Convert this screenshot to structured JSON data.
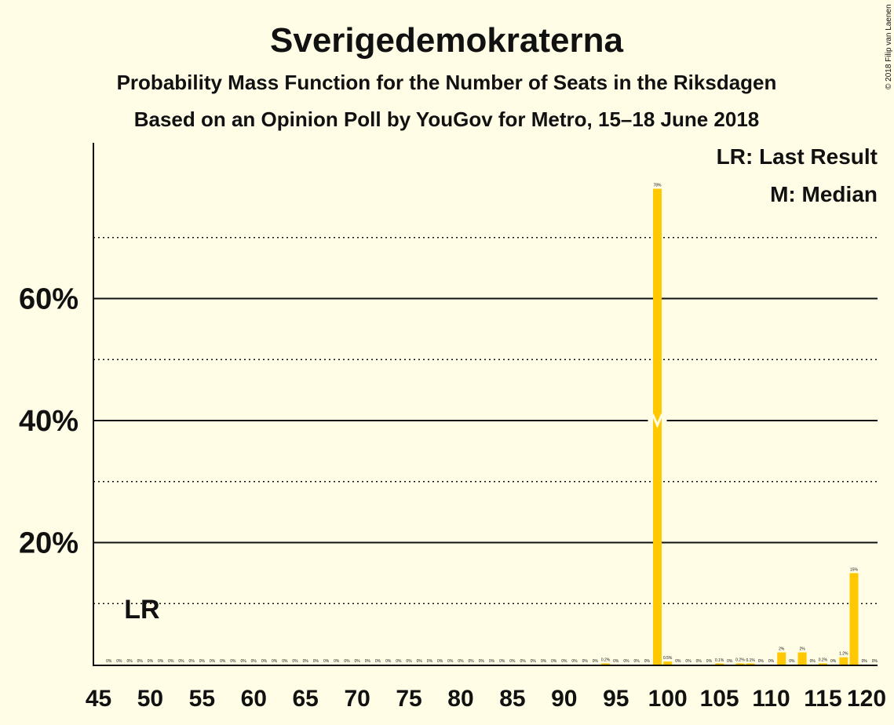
{
  "chart_data": {
    "type": "bar",
    "title": "Sverigedemokraterna",
    "subtitle_1": "Probability Mass Function for the Number of Seats in the Riksdagen",
    "subtitle_2": "Based on an Opinion Poll by YouGov for Metro, 15–18 June 2018",
    "copyright": "© 2018 Filip van Laenen",
    "x_range": [
      45,
      120
    ],
    "x_ticks": [
      "45",
      "50",
      "55",
      "60",
      "65",
      "70",
      "75",
      "80",
      "85",
      "90",
      "95",
      "100",
      "105",
      "110",
      "115",
      "120"
    ],
    "ylim": [
      0,
      85
    ],
    "y_ticks": [
      "20%",
      "40%",
      "60%"
    ],
    "y_tick_values": [
      20,
      40,
      60
    ],
    "solid_gridlines": [
      20,
      40,
      60
    ],
    "dotted_gridlines": [
      10,
      30,
      50,
      70
    ],
    "bar_color": "#FFC800",
    "seats": [
      46,
      47,
      48,
      49,
      50,
      51,
      52,
      53,
      54,
      55,
      56,
      57,
      58,
      59,
      60,
      61,
      62,
      63,
      64,
      65,
      66,
      67,
      68,
      69,
      70,
      71,
      72,
      73,
      74,
      75,
      76,
      77,
      78,
      79,
      80,
      81,
      82,
      83,
      84,
      85,
      86,
      87,
      88,
      89,
      90,
      91,
      92,
      93,
      94,
      95,
      96,
      97,
      98,
      99,
      100,
      101,
      102,
      103,
      104,
      105,
      106,
      107,
      108,
      109,
      110,
      111,
      112,
      113,
      114,
      115,
      116,
      117,
      118,
      119,
      120
    ],
    "values": [
      0,
      0,
      0,
      0,
      0,
      0,
      0,
      0,
      0,
      0,
      0,
      0,
      0,
      0,
      0,
      0,
      0,
      0,
      0,
      0,
      0,
      0,
      0,
      0,
      0,
      0,
      0,
      0,
      0,
      0,
      0,
      0,
      0,
      0,
      0,
      0,
      0,
      0,
      0,
      0,
      0,
      0,
      0,
      0,
      0,
      0,
      0,
      0,
      0.2,
      0,
      0,
      0,
      0,
      78,
      0.5,
      0,
      0,
      0,
      0,
      0.1,
      0,
      0.2,
      0.1,
      0,
      0,
      2,
      0,
      2,
      0,
      0.2,
      0,
      1.2,
      15,
      0,
      0
    ],
    "labels": [
      "0%",
      "0%",
      "0%",
      "0%",
      "0%",
      "0%",
      "0%",
      "0%",
      "0%",
      "0%",
      "0%",
      "0%",
      "0%",
      "0%",
      "0%",
      "0%",
      "0%",
      "0%",
      "0%",
      "0%",
      "0%",
      "0%",
      "0%",
      "0%",
      "0%",
      "0%",
      "0%",
      "0%",
      "0%",
      "0%",
      "0%",
      "0%",
      "0%",
      "0%",
      "0%",
      "0%",
      "0%",
      "0%",
      "0%",
      "0%",
      "0%",
      "0%",
      "0%",
      "0%",
      "0%",
      "0%",
      "0%",
      "0%",
      "0.2%",
      "0%",
      "0%",
      "0%",
      "0%",
      "78%",
      "0.5%",
      "0%",
      "0%",
      "0%",
      "0%",
      "0.1%",
      "0%",
      "0.2%",
      "0.1%",
      "0%",
      "0%",
      "2%",
      "0%",
      "2%",
      "0%",
      "0.2%",
      "0%",
      "1.2%",
      "15%",
      "0%",
      "0%"
    ],
    "median_seat": 99,
    "last_result_seat": 49,
    "last_result_label": "LR",
    "legend": [
      "LR: Last Result",
      "M: Median"
    ]
  }
}
